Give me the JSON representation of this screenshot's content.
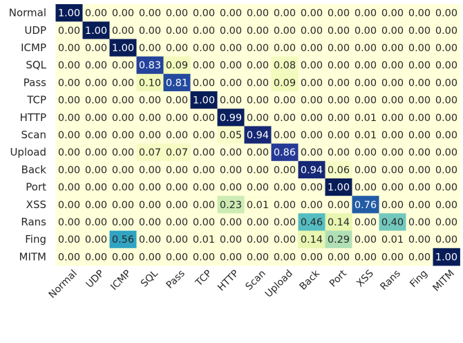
{
  "chart_data": {
    "type": "heatmap",
    "title": "",
    "xlabel": "",
    "ylabel": "",
    "row_labels": [
      "Normal",
      "UDP",
      "ICMP",
      "SQL",
      "Pass",
      "TCP",
      "HTTP",
      "Scan",
      "Upload",
      "Back",
      "Port",
      "XSS",
      "Rans",
      "Fing",
      "MITM"
    ],
    "col_labels": [
      "Normal",
      "UDP",
      "ICMP",
      "SQL",
      "Pass",
      "TCP",
      "HTTP",
      "Scan",
      "Upload",
      "Back",
      "Port",
      "XSS",
      "Rans",
      "Fing",
      "MITM"
    ],
    "values": [
      [
        1.0,
        0.0,
        0.0,
        0.0,
        0.0,
        0.0,
        0.0,
        0.0,
        0.0,
        0.0,
        0.0,
        0.0,
        0.0,
        0.0,
        0.0
      ],
      [
        0.0,
        1.0,
        0.0,
        0.0,
        0.0,
        0.0,
        0.0,
        0.0,
        0.0,
        0.0,
        0.0,
        0.0,
        0.0,
        0.0,
        0.0
      ],
      [
        0.0,
        0.0,
        1.0,
        0.0,
        0.0,
        0.0,
        0.0,
        0.0,
        0.0,
        0.0,
        0.0,
        0.0,
        0.0,
        0.0,
        0.0
      ],
      [
        0.0,
        0.0,
        0.0,
        0.83,
        0.09,
        0.0,
        0.0,
        0.0,
        0.08,
        0.0,
        0.0,
        0.0,
        0.0,
        0.0,
        0.0
      ],
      [
        0.0,
        0.0,
        0.0,
        0.1,
        0.81,
        0.0,
        0.0,
        0.0,
        0.09,
        0.0,
        0.0,
        0.0,
        0.0,
        0.0,
        0.0
      ],
      [
        0.0,
        0.0,
        0.0,
        0.0,
        0.0,
        1.0,
        0.0,
        0.0,
        0.0,
        0.0,
        0.0,
        0.0,
        0.0,
        0.0,
        0.0
      ],
      [
        0.0,
        0.0,
        0.0,
        0.0,
        0.0,
        0.0,
        0.99,
        0.0,
        0.0,
        0.0,
        0.0,
        0.01,
        0.0,
        0.0,
        0.0
      ],
      [
        0.0,
        0.0,
        0.0,
        0.0,
        0.0,
        0.0,
        0.05,
        0.94,
        0.0,
        0.0,
        0.0,
        0.01,
        0.0,
        0.0,
        0.0
      ],
      [
        0.0,
        0.0,
        0.0,
        0.07,
        0.07,
        0.0,
        0.0,
        0.0,
        0.86,
        0.0,
        0.0,
        0.0,
        0.0,
        0.0,
        0.0
      ],
      [
        0.0,
        0.0,
        0.0,
        0.0,
        0.0,
        0.0,
        0.0,
        0.0,
        0.0,
        0.94,
        0.06,
        0.0,
        0.0,
        0.0,
        0.0
      ],
      [
        0.0,
        0.0,
        0.0,
        0.0,
        0.0,
        0.0,
        0.0,
        0.0,
        0.0,
        0.0,
        1.0,
        0.0,
        0.0,
        0.0,
        0.0
      ],
      [
        0.0,
        0.0,
        0.0,
        0.0,
        0.0,
        0.0,
        0.23,
        0.01,
        0.0,
        0.0,
        0.0,
        0.76,
        0.0,
        0.0,
        0.0
      ],
      [
        0.0,
        0.0,
        0.0,
        0.0,
        0.0,
        0.0,
        0.0,
        0.0,
        0.0,
        0.46,
        0.14,
        0.0,
        0.4,
        0.0,
        0.0
      ],
      [
        0.0,
        0.0,
        0.56,
        0.0,
        0.0,
        0.01,
        0.0,
        0.0,
        0.0,
        0.14,
        0.29,
        0.0,
        0.01,
        0.0,
        0.0
      ],
      [
        0.0,
        0.0,
        0.0,
        0.0,
        0.0,
        0.0,
        0.0,
        0.0,
        0.0,
        0.0,
        0.0,
        0.0,
        0.0,
        0.0,
        1.0
      ]
    ],
    "value_range": [
      0,
      1
    ],
    "colormap": "YlGnBu",
    "colorbar": false,
    "grid": false,
    "value_format": "0.00"
  }
}
